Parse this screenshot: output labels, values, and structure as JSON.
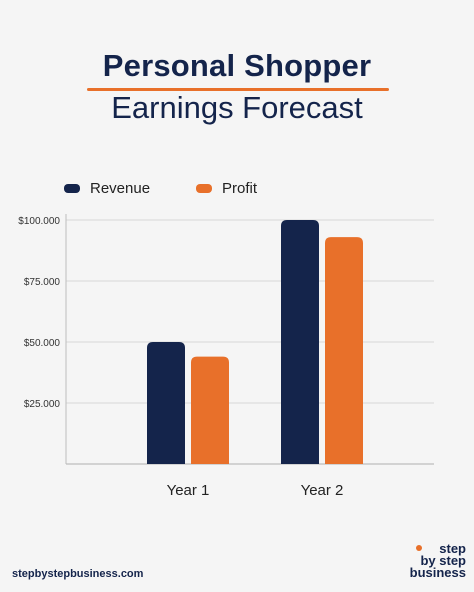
{
  "header": {
    "title_line1": "Personal Shopper",
    "title_line2": "Earnings Forecast"
  },
  "colors": {
    "revenue": "#14244b",
    "profit": "#e8702a",
    "accent": "#e8702a",
    "text": "#14244b"
  },
  "chart_data": {
    "type": "bar",
    "title": "Personal Shopper Earnings Forecast",
    "categories": [
      "Year 1",
      "Year 2"
    ],
    "series": [
      {
        "name": "Revenue",
        "values": [
          50000,
          100000
        ]
      },
      {
        "name": "Profit",
        "values": [
          44000,
          93000
        ]
      }
    ],
    "y_ticks": [
      25000,
      50000,
      75000,
      100000
    ],
    "y_tick_labels": [
      "$25.000",
      "$50.000",
      "$75.000",
      "$100.000"
    ],
    "ylim": [
      0,
      100000
    ],
    "xlabel": "",
    "ylabel": "",
    "grid": true,
    "legend_position": "top-left"
  },
  "footer": {
    "url": "stepbystepbusiness.com",
    "logo_lines": [
      "step",
      "by step",
      "business"
    ]
  }
}
